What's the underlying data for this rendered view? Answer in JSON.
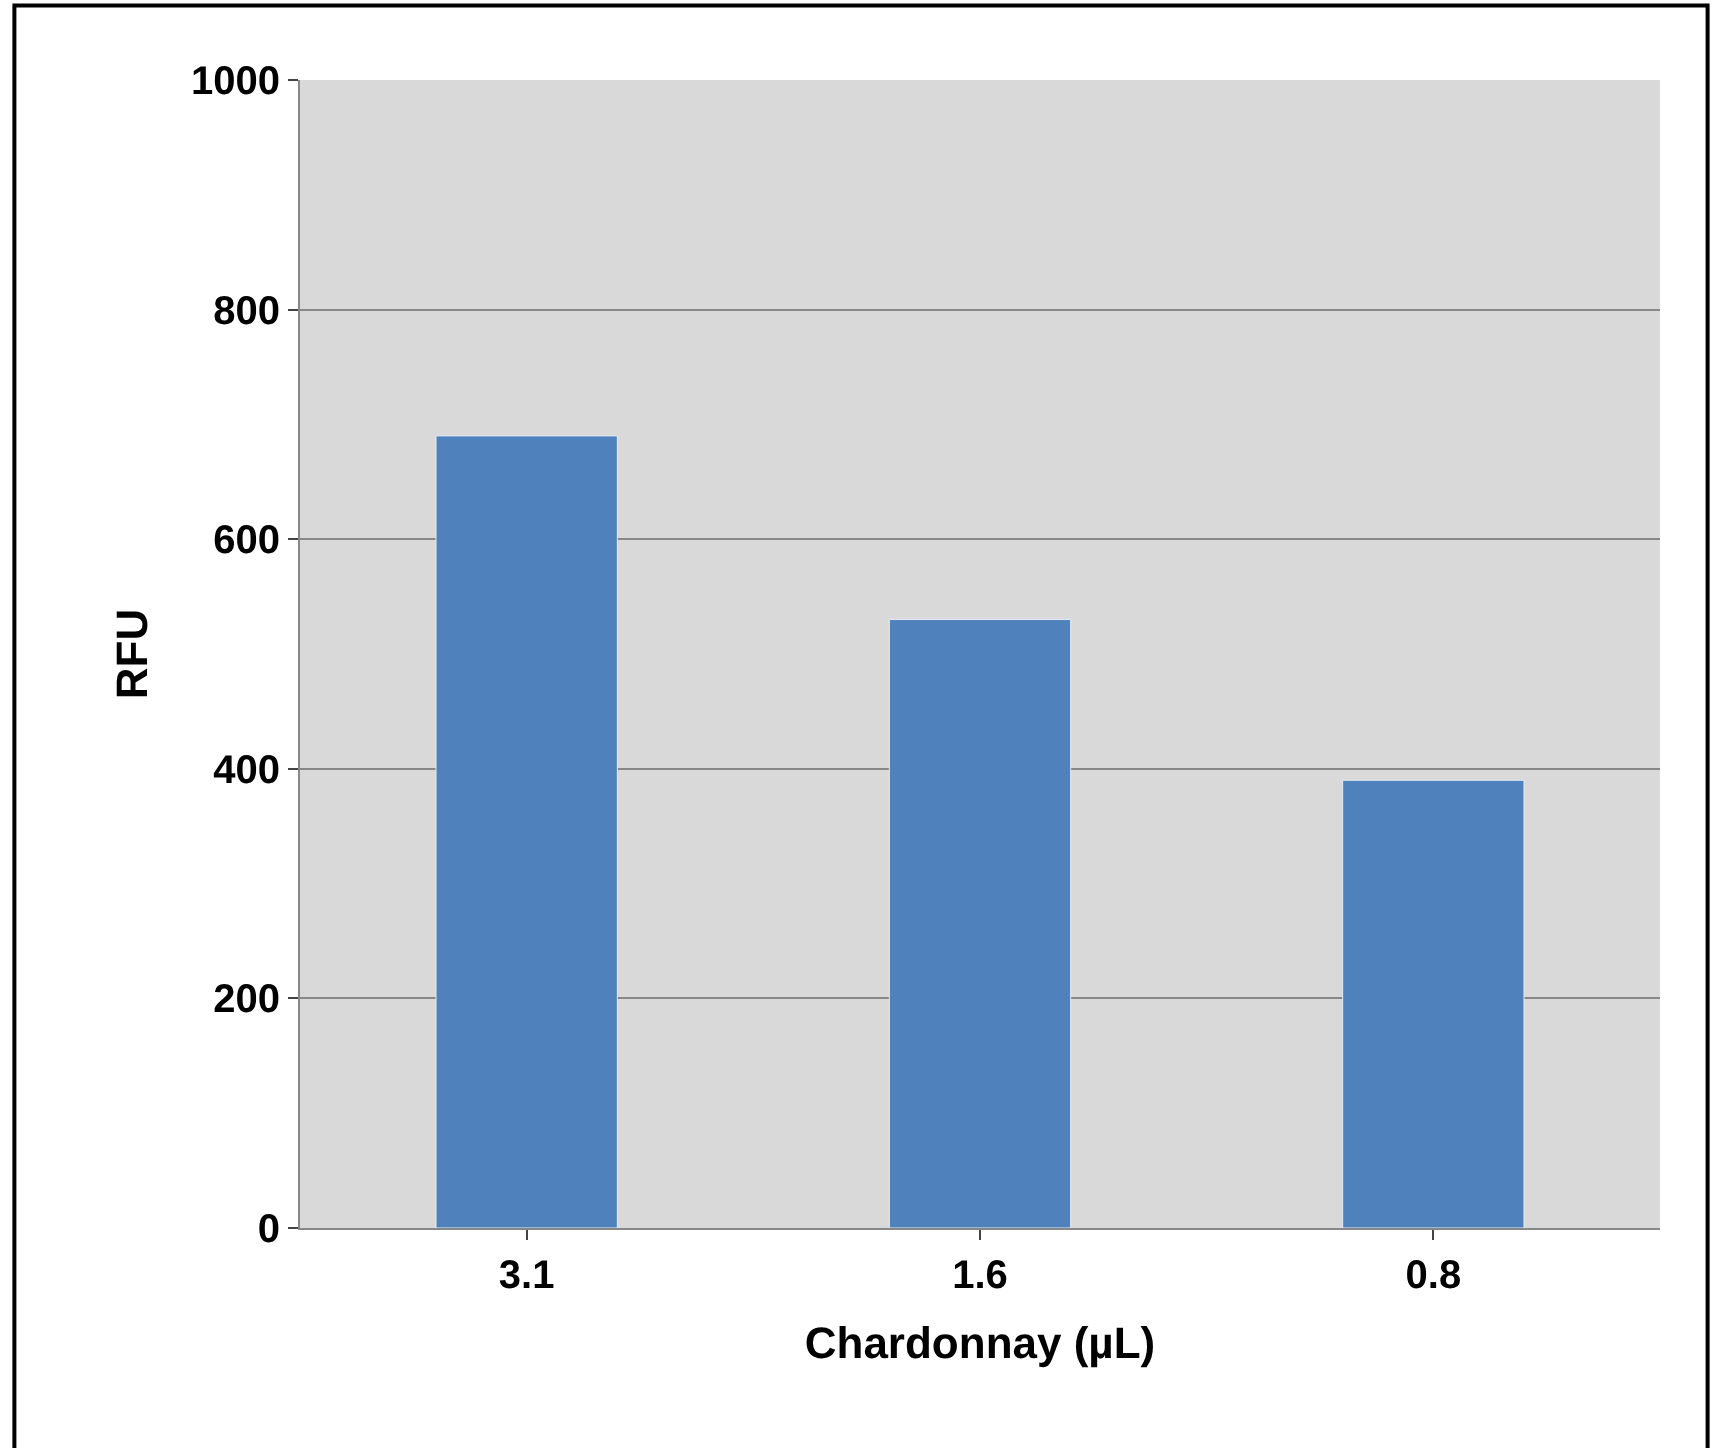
{
  "chart_data": {
    "type": "bar",
    "xlabel": "Chardonnay (µL)",
    "ylabel": "RFU",
    "categories": [
      "3.1",
      "1.6",
      "0.8"
    ],
    "values": [
      690,
      530,
      390
    ],
    "color": "#4f81bd",
    "ylim": [
      0,
      1000
    ],
    "yticks": [
      0,
      200,
      400,
      600,
      800,
      1000
    ],
    "grid": "y"
  }
}
